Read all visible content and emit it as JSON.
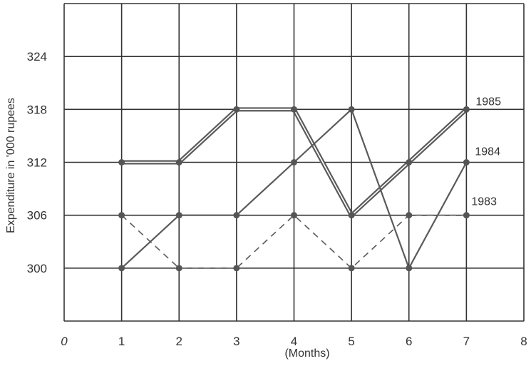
{
  "chart_data": {
    "type": "line",
    "xlabel": "(Months)",
    "ylabel": "Expenditure in '000 rupees",
    "x_ticks": [
      0,
      1,
      2,
      3,
      4,
      5,
      6,
      7,
      8
    ],
    "y_ticks": [
      300,
      306,
      312,
      318,
      324
    ],
    "xlim": [
      0,
      8
    ],
    "ylim": [
      294,
      330
    ],
    "grid": true,
    "x": [
      1,
      2,
      3,
      4,
      5,
      6,
      7
    ],
    "series": [
      {
        "name": "1985",
        "values": [
          312,
          312,
          318,
          318,
          306,
          312,
          318
        ],
        "style": "double",
        "color": "#5a5a5a"
      },
      {
        "name": "1984",
        "values": [
          300,
          306,
          306,
          312,
          318,
          300,
          312
        ],
        "style": "solid",
        "color": "#5a5a5a"
      },
      {
        "name": "1983",
        "values": [
          306,
          300,
          300,
          306,
          300,
          306,
          306
        ],
        "style": "dashed",
        "color": "#5a5a5a"
      }
    ]
  }
}
